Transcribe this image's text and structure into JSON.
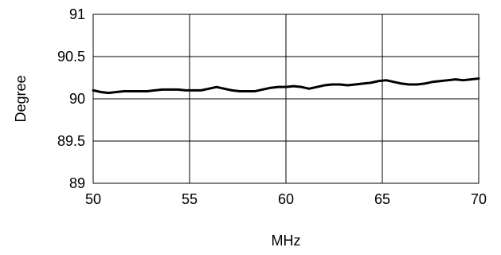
{
  "chart_data": {
    "type": "line",
    "xlabel": "MHz",
    "ylabel": "Degree",
    "xlim": [
      50,
      70
    ],
    "ylim": [
      89,
      91
    ],
    "x_ticks": [
      50,
      55,
      60,
      65,
      70
    ],
    "y_ticks": [
      89,
      89.5,
      90,
      90.5,
      91
    ],
    "x_tick_labels": [
      "50",
      "55",
      "60",
      "65",
      "70"
    ],
    "y_tick_labels": [
      "89",
      "89.5",
      "90",
      "90.5",
      "91"
    ],
    "grid": true,
    "legend": "none",
    "line_color": "#000000",
    "series": [
      {
        "x": [
          50,
          50.4,
          50.8,
          51.2,
          51.6,
          52,
          52.4,
          52.8,
          53.2,
          53.6,
          54,
          54.4,
          54.8,
          55.2,
          55.6,
          56,
          56.4,
          56.8,
          57.2,
          57.6,
          58,
          58.4,
          58.8,
          59.2,
          59.6,
          60,
          60.4,
          60.8,
          61.2,
          61.6,
          62,
          62.4,
          62.8,
          63.2,
          63.6,
          64,
          64.4,
          64.8,
          65.2,
          65.6,
          66,
          66.4,
          66.8,
          67.2,
          67.6,
          68,
          68.4,
          68.8,
          69.2,
          69.6,
          70
        ],
        "y": [
          90.1,
          90.08,
          90.07,
          90.08,
          90.09,
          90.09,
          90.09,
          90.09,
          90.1,
          90.11,
          90.11,
          90.11,
          90.1,
          90.1,
          90.1,
          90.12,
          90.14,
          90.12,
          90.1,
          90.09,
          90.09,
          90.09,
          90.11,
          90.13,
          90.14,
          90.14,
          90.15,
          90.14,
          90.12,
          90.14,
          90.16,
          90.17,
          90.17,
          90.16,
          90.17,
          90.18,
          90.19,
          90.21,
          90.22,
          90.2,
          90.18,
          90.17,
          90.17,
          90.18,
          90.2,
          90.21,
          90.22,
          90.23,
          90.22,
          90.23,
          90.24
        ]
      }
    ]
  }
}
